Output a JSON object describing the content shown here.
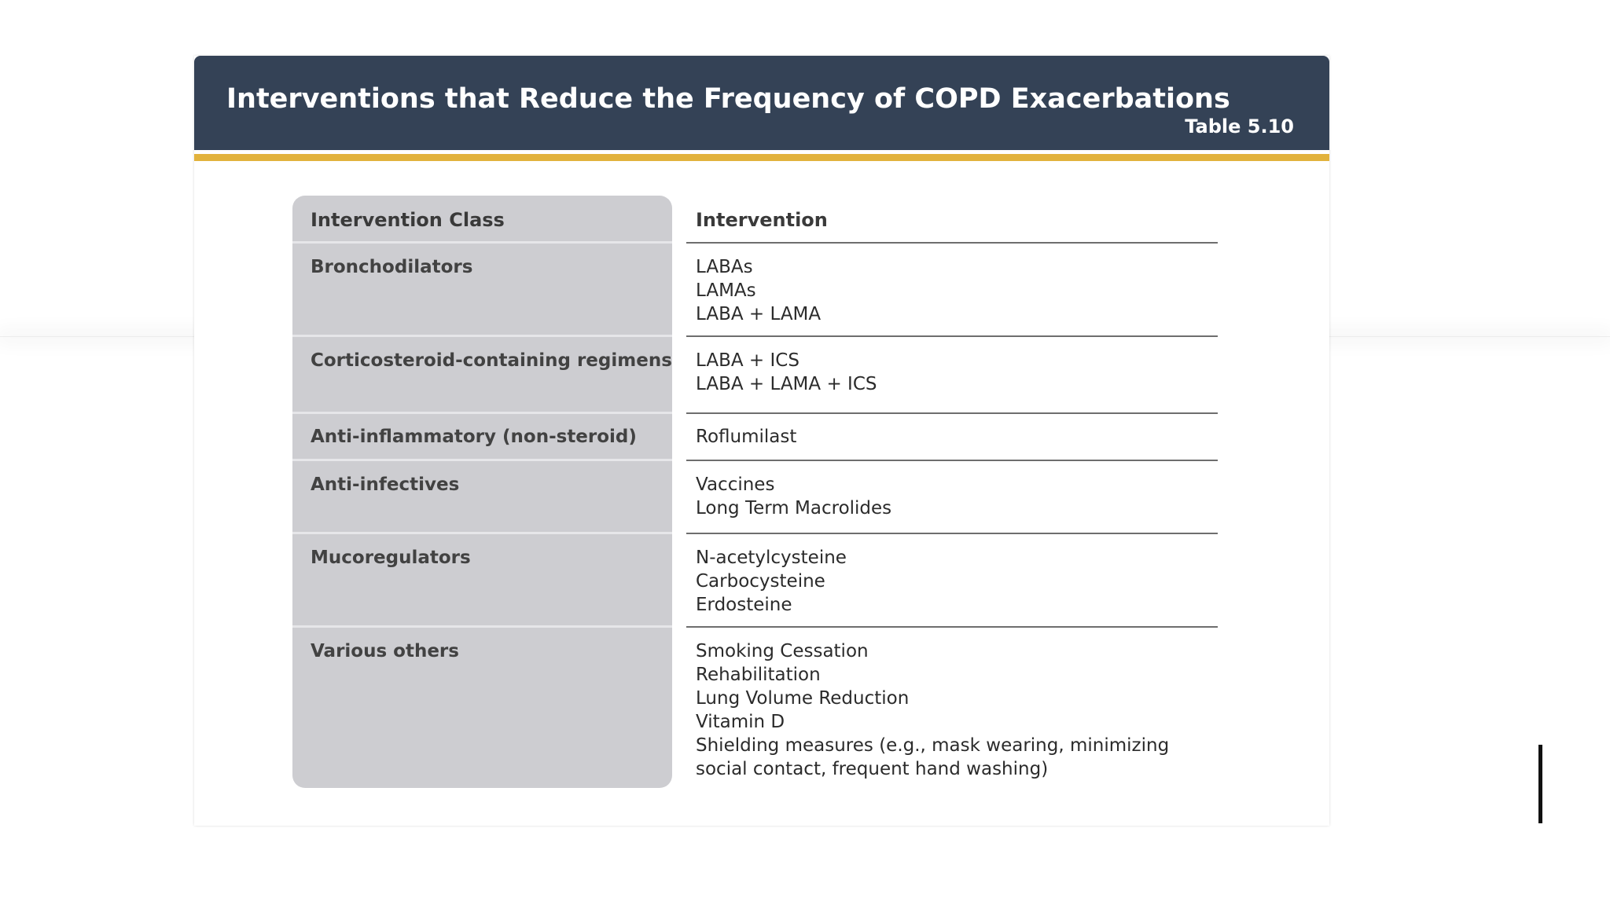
{
  "slide": {
    "title": "Interventions that Reduce the Frequency of COPD Exacerbations",
    "table_label": "Table 5.10"
  },
  "table": {
    "headers": {
      "class": "Intervention Class",
      "intervention": "Intervention"
    },
    "rows": [
      {
        "class": "Bronchodilators",
        "interventions": [
          "LABAs",
          "LAMAs",
          "LABA + LAMA"
        ]
      },
      {
        "class": "Corticosteroid-containing regimens",
        "interventions": [
          "LABA + ICS",
          "LABA + LAMA + ICS"
        ]
      },
      {
        "class": "Anti-inflammatory (non-steroid)",
        "interventions": [
          "Roflumilast"
        ]
      },
      {
        "class": "Anti-infectives",
        "interventions": [
          "Vaccines",
          "Long Term Macrolides"
        ]
      },
      {
        "class": "Mucoregulators",
        "interventions": [
          "N-acetylcysteine",
          "Carbocysteine",
          "Erdosteine"
        ]
      },
      {
        "class": "Various others",
        "interventions": [
          "Smoking Cessation",
          "Rehabilitation",
          "Lung Volume Reduction",
          "Vitamin D",
          "Shielding measures (e.g., mask wearing, minimizing",
          "social contact, frequent hand washing)"
        ]
      }
    ]
  },
  "colors": {
    "header_bg": "#344256",
    "accent": "#e2b23c",
    "class_panel": "#cdcdd1"
  }
}
